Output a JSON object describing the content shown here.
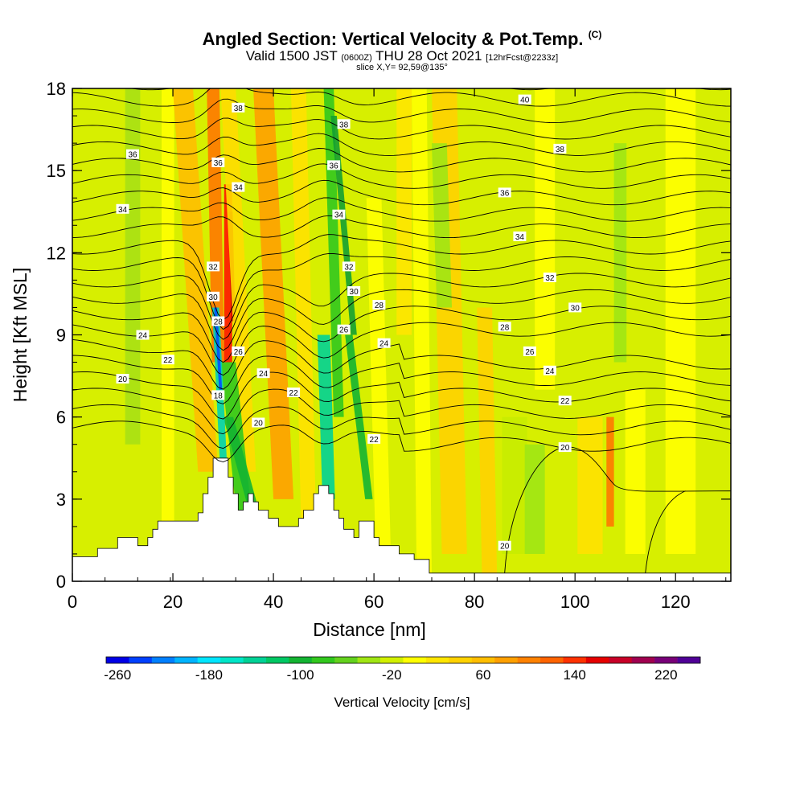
{
  "chart_data": {
    "type": "heatmap",
    "title": "Angled Section: Vertical Velocity & Pot.Temp.",
    "title_mark": "(C)",
    "subtitle_main": "Valid 1500 JST",
    "subtitle_z": "(0600Z)",
    "subtitle_date": "THU 28 Oct 2021",
    "subtitle_fcst": "[12hrFcst@2233z]",
    "slice": "slice X,Y= 92,59@135°",
    "xlabel": "Distance [nm]",
    "ylabel": "Height [Kft MSL]",
    "xlim": [
      0,
      131
    ],
    "ylim": [
      0,
      18
    ],
    "x_ticks": [
      "0",
      "20",
      "40",
      "60",
      "80",
      "100",
      "120"
    ],
    "y_ticks": [
      "0",
      "3",
      "6",
      "9",
      "12",
      "15",
      "18"
    ],
    "colorbar": {
      "label": "Vertical Velocity [cm/s]",
      "tick_labels": [
        "-260",
        "-180",
        "-100",
        "-20",
        "60",
        "140",
        "220"
      ],
      "colors": [
        "#0000e6",
        "#0040ff",
        "#0080ff",
        "#00b4ff",
        "#00e6ff",
        "#00e6c8",
        "#00d296",
        "#00c864",
        "#14b432",
        "#32c81e",
        "#64d21e",
        "#a0e614",
        "#d2f000",
        "#ffff00",
        "#ffe600",
        "#ffd200",
        "#ffbe00",
        "#ffa000",
        "#ff8200",
        "#ff6400",
        "#ff3200",
        "#e60000",
        "#c80028",
        "#a00050",
        "#780078",
        "#500096"
      ]
    },
    "theta_labels": [
      {
        "text": "36",
        "x": 12,
        "y": 15.6
      },
      {
        "text": "34",
        "x": 10,
        "y": 13.6
      },
      {
        "text": "24",
        "x": 14,
        "y": 9.0
      },
      {
        "text": "22",
        "x": 19,
        "y": 8.1
      },
      {
        "text": "20",
        "x": 10,
        "y": 7.4
      },
      {
        "text": "38",
        "x": 33,
        "y": 17.3
      },
      {
        "text": "36",
        "x": 29,
        "y": 15.3
      },
      {
        "text": "34",
        "x": 33,
        "y": 14.4
      },
      {
        "text": "32",
        "x": 28,
        "y": 11.5
      },
      {
        "text": "30",
        "x": 28,
        "y": 10.4
      },
      {
        "text": "28",
        "x": 29,
        "y": 9.5
      },
      {
        "text": "26",
        "x": 33,
        "y": 8.4
      },
      {
        "text": "24",
        "x": 38,
        "y": 7.6
      },
      {
        "text": "18",
        "x": 29,
        "y": 6.8
      },
      {
        "text": "20",
        "x": 37,
        "y": 5.8
      },
      {
        "text": "22",
        "x": 44,
        "y": 6.9
      },
      {
        "text": "38",
        "x": 54,
        "y": 16.7
      },
      {
        "text": "36",
        "x": 52,
        "y": 15.2
      },
      {
        "text": "34",
        "x": 53,
        "y": 13.4
      },
      {
        "text": "32",
        "x": 55,
        "y": 11.5
      },
      {
        "text": "30",
        "x": 56,
        "y": 10.6
      },
      {
        "text": "28",
        "x": 61,
        "y": 10.1
      },
      {
        "text": "26",
        "x": 54,
        "y": 9.2
      },
      {
        "text": "24",
        "x": 62,
        "y": 8.7
      },
      {
        "text": "22",
        "x": 60,
        "y": 5.2
      },
      {
        "text": "40",
        "x": 90,
        "y": 17.6
      },
      {
        "text": "38",
        "x": 97,
        "y": 15.8
      },
      {
        "text": "36",
        "x": 86,
        "y": 14.2
      },
      {
        "text": "34",
        "x": 89,
        "y": 12.6
      },
      {
        "text": "32",
        "x": 95,
        "y": 11.1
      },
      {
        "text": "30",
        "x": 100,
        "y": 10.0
      },
      {
        "text": "28",
        "x": 86,
        "y": 9.3
      },
      {
        "text": "26",
        "x": 91,
        "y": 8.4
      },
      {
        "text": "24",
        "x": 95,
        "y": 7.7
      },
      {
        "text": "22",
        "x": 98,
        "y": 6.6
      },
      {
        "text": "20",
        "x": 98,
        "y": 4.9
      },
      {
        "text": "20",
        "x": 86,
        "y": 1.3
      }
    ]
  }
}
